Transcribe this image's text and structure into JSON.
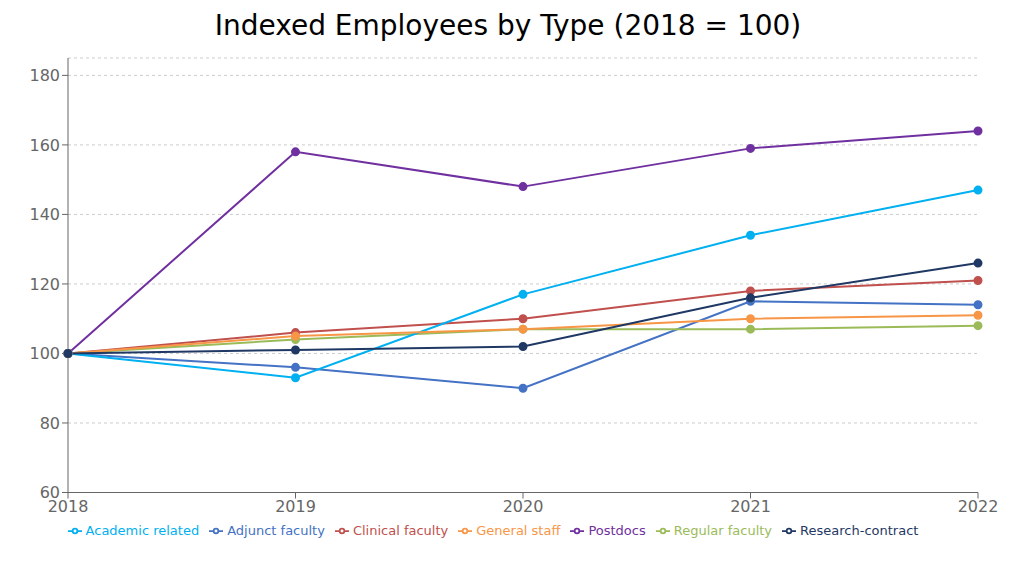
{
  "chart_data": {
    "type": "line",
    "title": "Indexed Employees by Type (2018 = 100)",
    "categories": [
      "2018",
      "2019",
      "2020",
      "2021",
      "2022"
    ],
    "series": [
      {
        "name": "Adjunct faculty",
        "color": "#4472C4",
        "marker": "o",
        "values": [
          100,
          96,
          90,
          115,
          114
        ]
      },
      {
        "name": "Clinical faculty",
        "color": "#C0504D",
        "marker": "o",
        "values": [
          100,
          106,
          110,
          118,
          121
        ]
      },
      {
        "name": "Regular faculty",
        "color": "#9BBB59",
        "marker": "o",
        "values": [
          100,
          104,
          107,
          107,
          108
        ]
      },
      {
        "name": "Postdocs",
        "color": "#7030A0",
        "marker": "o",
        "values": [
          100,
          158,
          148,
          159,
          164
        ]
      },
      {
        "name": "Academic related",
        "color": "#00B0F0",
        "marker": "o",
        "values": [
          100,
          93,
          117,
          134,
          147
        ]
      },
      {
        "name": "General staff",
        "color": "#F79646",
        "marker": "o",
        "values": [
          100,
          105,
          107,
          110,
          111
        ]
      },
      {
        "name": "Research-contract",
        "color": "#1F3864",
        "marker": "o",
        "values": [
          100,
          101,
          102,
          116,
          126
        ]
      }
    ],
    "ylim": [
      60,
      185
    ],
    "yticks": [
      60,
      80,
      100,
      120,
      140,
      160,
      180
    ],
    "grid": true,
    "legend": "bottom"
  }
}
